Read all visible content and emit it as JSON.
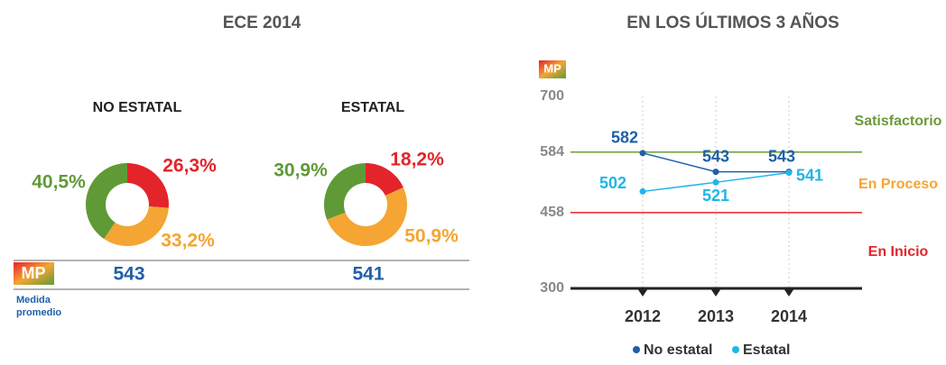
{
  "header": {
    "title": "ECE 2014"
  },
  "mp": {
    "badge": "MP",
    "caption": [
      "Medida",
      "promedio"
    ]
  },
  "chart_data": [
    {
      "type": "donut",
      "title": "NO ESTATAL",
      "values": [
        26.3,
        33.2,
        40.5
      ],
      "value_labels": [
        "26,3%",
        "33,2%",
        "40,5%"
      ],
      "colors": [
        "#e3242b",
        "#f4a533",
        "#5f9a37"
      ],
      "mean": 543
    },
    {
      "type": "donut",
      "title": "ESTATAL",
      "values": [
        18.2,
        50.9,
        30.9
      ],
      "value_labels": [
        "18,2%",
        "50,9%",
        "30,9%"
      ],
      "colors": [
        "#e3242b",
        "#f4a533",
        "#5f9a37"
      ],
      "mean": 541
    },
    {
      "type": "line",
      "title": "EN LOS ÚLTIMOS 3 AÑOS",
      "badge": "MP",
      "x": [
        "2012",
        "2013",
        "2014"
      ],
      "series": [
        {
          "name": "No estatal",
          "color": "#1f5fa8",
          "values": [
            582,
            543,
            543
          ]
        },
        {
          "name": "Estatal",
          "color": "#1fb6e8",
          "values": [
            502,
            521,
            541
          ]
        }
      ],
      "ylim": [
        300,
        700
      ],
      "yticks": [
        300,
        458,
        584,
        700
      ],
      "tick_line_colors": [
        "#222222",
        "#e3242b",
        "#6a9a3a",
        null
      ],
      "bands": [
        {
          "label": "Satisfactorio",
          "color": "#6a9a3a"
        },
        {
          "label": "En Proceso",
          "color": "#f4a533"
        },
        {
          "label": "En Inicio",
          "color": "#e3242b"
        }
      ],
      "grid": true
    }
  ]
}
